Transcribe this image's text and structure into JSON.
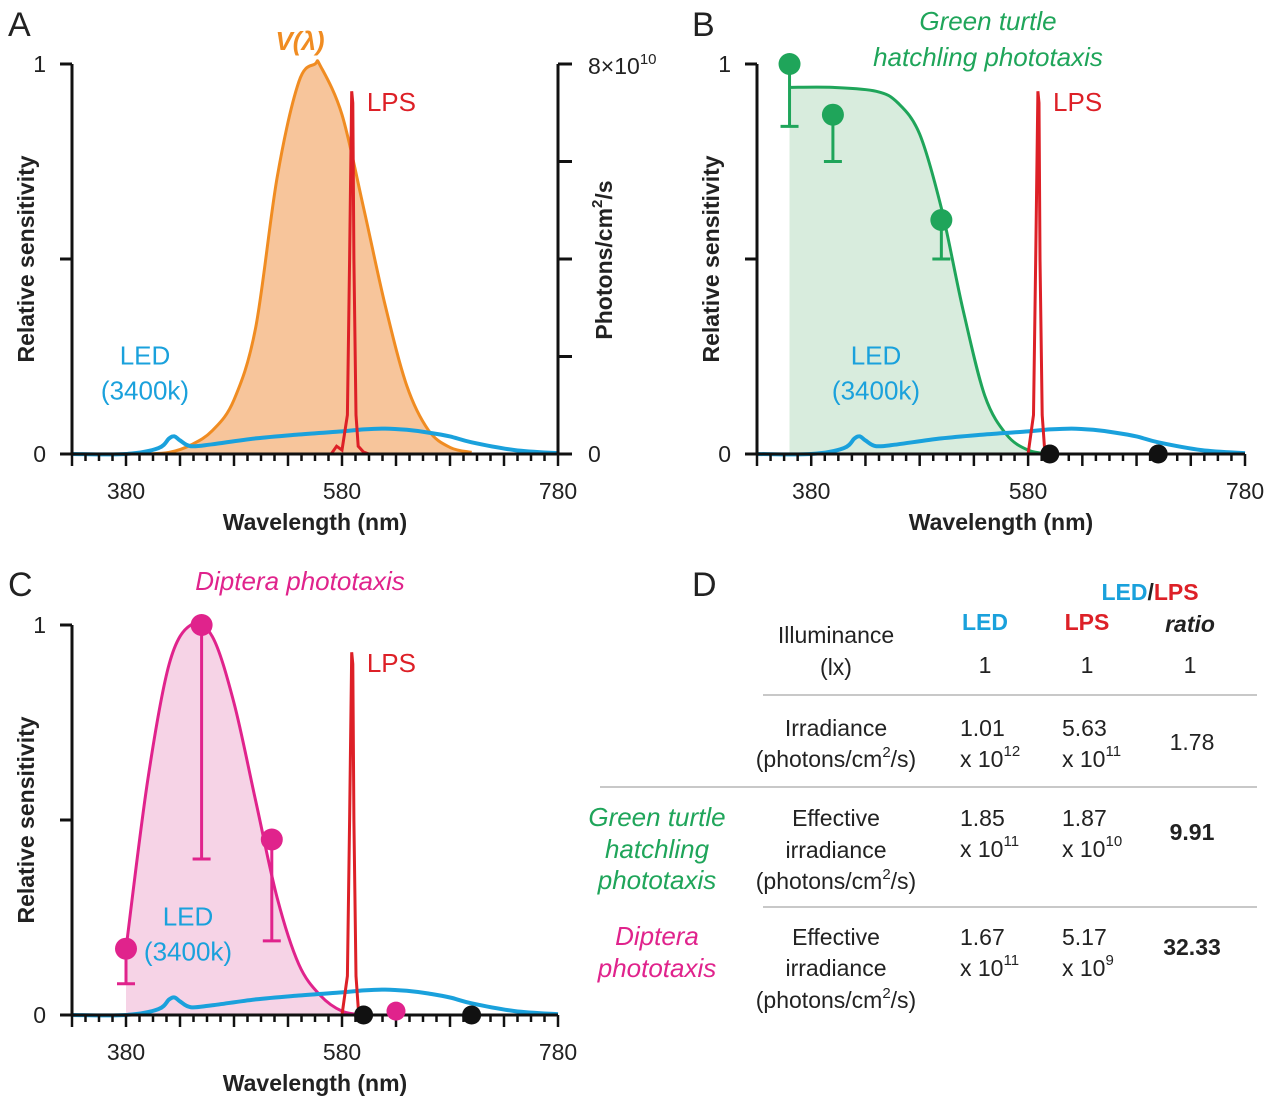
{
  "panels": {
    "A": "A",
    "B": "B",
    "C": "C",
    "D": "D"
  },
  "colors": {
    "vlambda": "#f08c22",
    "vlambda_fill": "#f7c59b",
    "lps": "#dd2027",
    "led": "#1aa1dc",
    "turtle": "#1fa55a",
    "turtle_fill": "#d8ecdd",
    "diptera": "#e0238c",
    "diptera_fill": "#f6d3e6",
    "axis": "#111111",
    "black_dot": "#111111"
  },
  "chart_data": [
    {
      "panel": "A",
      "type": "line",
      "title": "V(λ)",
      "xlabel": "Wavelength (nm)",
      "ylabel": "Relative sensitivity",
      "y2label": "Photons/cm2/s",
      "xlim": [
        330,
        780
      ],
      "ylim": [
        0,
        1
      ],
      "x_ticks": [
        "380",
        "580",
        "780"
      ],
      "y_ticks": [
        "0",
        "1"
      ],
      "y2_ticks_label_top": "8×10",
      "y2_ticks_label_top_exp": "10",
      "y2_ticks_label_bottom": "0",
      "y2lim": [
        0,
        80000000000.0
      ],
      "series": [
        {
          "name": "V(λ)",
          "filled": true,
          "x": [
            400,
            420,
            440,
            460,
            480,
            500,
            520,
            540,
            555,
            560,
            580,
            600,
            620,
            640,
            660,
            680,
            700
          ],
          "y": [
            0.0004,
            0.004,
            0.023,
            0.06,
            0.139,
            0.323,
            0.71,
            0.954,
            1.0,
            0.995,
            0.87,
            0.631,
            0.381,
            0.175,
            0.061,
            0.017,
            0.004
          ]
        },
        {
          "name": "LPS",
          "x": [
            570,
            575,
            580,
            585,
            587,
            589,
            590,
            591,
            593,
            595,
            600,
            605
          ],
          "y": [
            0,
            0.02,
            0.01,
            0.1,
            0.5,
            0.93,
            0.9,
            0.5,
            0.1,
            0.02,
            0.005,
            0
          ]
        },
        {
          "name": "LED (3400k)",
          "x": [
            330,
            380,
            410,
            420,
            425,
            430,
            440,
            460,
            500,
            540,
            580,
            600,
            620,
            640,
            660,
            680,
            700,
            740,
            780
          ],
          "y": [
            0,
            0.0,
            0.015,
            0.04,
            0.045,
            0.035,
            0.02,
            0.025,
            0.04,
            0.05,
            0.058,
            0.063,
            0.065,
            0.062,
            0.055,
            0.045,
            0.03,
            0.01,
            0.002
          ]
        }
      ],
      "annotations": {
        "lps": "LPS",
        "led_line1": "LED",
        "led_line2": "(3400k)"
      }
    },
    {
      "panel": "B",
      "type": "line",
      "title_line1": "Green turtle",
      "title_line2": "hatchling phototaxis",
      "xlabel": "Wavelength (nm)",
      "ylabel": "Relative sensitivity",
      "xlim": [
        330,
        780
      ],
      "ylim": [
        0,
        1
      ],
      "x_ticks": [
        "380",
        "580",
        "780"
      ],
      "y_ticks": [
        "0",
        "1"
      ],
      "series": [
        {
          "name": "Green turtle hatchling phototaxis",
          "filled": true,
          "x": [
            360,
            400,
            440,
            460,
            480,
            500,
            520,
            540,
            560,
            580,
            600
          ],
          "y": [
            0.94,
            0.94,
            0.93,
            0.9,
            0.82,
            0.63,
            0.37,
            0.15,
            0.05,
            0.01,
            0.0
          ]
        },
        {
          "name": "LPS",
          "x": [
            580,
            585,
            587,
            589,
            590,
            591,
            593,
            595,
            600
          ],
          "y": [
            0,
            0.1,
            0.5,
            0.93,
            0.9,
            0.5,
            0.1,
            0.02,
            0
          ]
        },
        {
          "name": "LED (3400k)",
          "x": [
            330,
            380,
            410,
            420,
            425,
            430,
            440,
            460,
            500,
            540,
            580,
            600,
            620,
            640,
            660,
            680,
            700,
            740,
            780
          ],
          "y": [
            0,
            0.0,
            0.015,
            0.04,
            0.045,
            0.035,
            0.02,
            0.025,
            0.04,
            0.05,
            0.058,
            0.063,
            0.065,
            0.062,
            0.055,
            0.045,
            0.03,
            0.01,
            0.002
          ]
        }
      ],
      "points": [
        {
          "x": 360,
          "y": 1.0,
          "err_low": 0.84
        },
        {
          "x": 400,
          "y": 0.87,
          "err_low": 0.75
        },
        {
          "x": 500,
          "y": 0.6,
          "err_low": 0.5
        }
      ],
      "zero_points": [
        {
          "x": 600,
          "y": 0
        },
        {
          "x": 700,
          "y": 0
        }
      ],
      "annotations": {
        "lps": "LPS",
        "led_line1": "LED",
        "led_line2": "(3400k)"
      }
    },
    {
      "panel": "C",
      "type": "line",
      "title": "Diptera phototaxis",
      "xlabel": "Wavelength (nm)",
      "ylabel": "Relative sensitivity",
      "xlim": [
        330,
        780
      ],
      "ylim": [
        0,
        1
      ],
      "x_ticks": [
        "380",
        "580",
        "780"
      ],
      "y_ticks": [
        "0",
        "1"
      ],
      "series": [
        {
          "name": "Diptera phototaxis",
          "filled": true,
          "x": [
            380,
            400,
            420,
            440,
            460,
            480,
            500,
            520,
            540,
            560,
            580,
            600
          ],
          "y": [
            0.17,
            0.6,
            0.9,
            1.0,
            0.97,
            0.8,
            0.55,
            0.3,
            0.13,
            0.05,
            0.01,
            0.0
          ]
        },
        {
          "name": "LPS",
          "x": [
            580,
            585,
            587,
            589,
            590,
            591,
            593,
            595,
            600
          ],
          "y": [
            0,
            0.1,
            0.5,
            0.93,
            0.9,
            0.5,
            0.1,
            0.02,
            0
          ]
        },
        {
          "name": "LED (3400k)",
          "x": [
            330,
            380,
            410,
            420,
            425,
            430,
            440,
            460,
            500,
            540,
            580,
            600,
            620,
            640,
            660,
            680,
            700,
            740,
            780
          ],
          "y": [
            0,
            0.0,
            0.015,
            0.04,
            0.045,
            0.035,
            0.02,
            0.025,
            0.04,
            0.05,
            0.058,
            0.063,
            0.065,
            0.062,
            0.055,
            0.045,
            0.03,
            0.01,
            0.002
          ]
        }
      ],
      "points": [
        {
          "x": 380,
          "y": 0.17,
          "err_low": 0.08
        },
        {
          "x": 450,
          "y": 1.0,
          "err_low": 0.4
        },
        {
          "x": 515,
          "y": 0.45,
          "err_low": 0.19
        }
      ],
      "zero_points": [
        {
          "x": 600,
          "y": 0,
          "color": "black"
        },
        {
          "x": 630,
          "y": 0.01,
          "color": "pink"
        },
        {
          "x": 700,
          "y": 0,
          "color": "black"
        }
      ],
      "annotations": {
        "lps": "LPS",
        "led_line1": "LED",
        "led_line2": "(3400k)"
      }
    },
    {
      "panel": "D",
      "type": "table",
      "header": {
        "led": "LED",
        "lps": "LPS",
        "ratio_led": "LED",
        "ratio_slash": "/",
        "ratio_lps": "LPS",
        "ratio_word": "ratio"
      },
      "rows": [
        {
          "group": "",
          "label_lines": [
            "Illuminance",
            "(lx)"
          ],
          "led": "1",
          "lps": "1",
          "ratio": "1"
        },
        {
          "group": "",
          "label_lines": [
            "Irradiance",
            "(photons/cm2/s)"
          ],
          "led_mant": "1.01",
          "led_exp": "12",
          "lps_mant": "5.63",
          "lps_exp": "11",
          "ratio": "1.78"
        },
        {
          "group_lines": [
            "Green turtle",
            "hatchling",
            "phototaxis"
          ],
          "label_lines": [
            "Effective",
            "irradiance",
            "(photons/cm2/s)"
          ],
          "led_mant": "1.85",
          "led_exp": "11",
          "lps_mant": "1.87",
          "lps_exp": "10",
          "ratio": "9.91"
        },
        {
          "group_lines": [
            "Diptera",
            "phototaxis"
          ],
          "label_lines": [
            "Effective",
            "irradiance",
            "(photons/cm2/s)"
          ],
          "led_mant": "1.67",
          "led_exp": "11",
          "lps_mant": "5.17",
          "lps_exp": "9",
          "ratio": "32.33"
        }
      ]
    }
  ]
}
